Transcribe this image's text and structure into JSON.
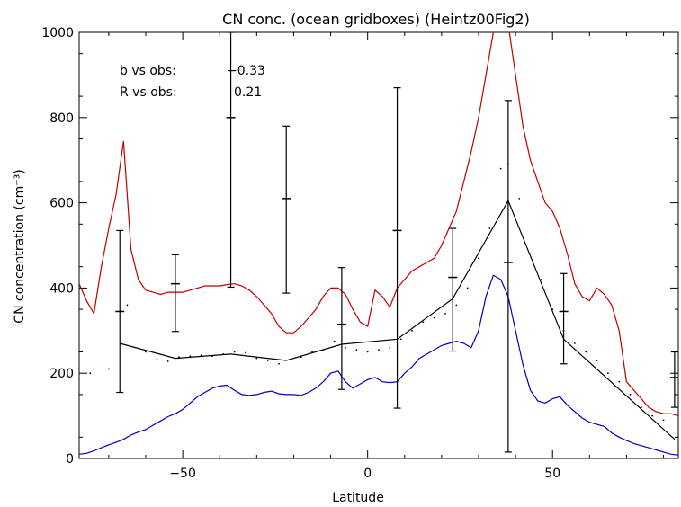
{
  "chart_data": {
    "type": "line",
    "title": "CN conc. (ocean gridboxes) (Heintz00Fig2)",
    "xlabel": "Latitude",
    "ylabel": "CN concentration (cm⁻³)",
    "xlim": [
      -78,
      84
    ],
    "ylim": [
      0,
      1000
    ],
    "x_ticks": [
      -50,
      0,
      50
    ],
    "x_tick_labels": [
      "−50",
      "0",
      "50"
    ],
    "y_ticks": [
      0,
      200,
      400,
      600,
      800,
      1000
    ],
    "y_tick_labels": [
      "0",
      "200",
      "400",
      "600",
      "800",
      "1000"
    ],
    "grid": false,
    "legend": "none",
    "annotations": [
      {
        "label": "b vs obs:",
        "value": "−0.33"
      },
      {
        "label": "R vs obs:",
        "value": "0.21"
      }
    ],
    "series": [
      {
        "color": "#c00000",
        "x": [
          -78,
          -76,
          -74,
          -72,
          -70,
          -68,
          -66,
          -64,
          -62,
          -60,
          -58,
          -56,
          -54,
          -52,
          -50,
          -48,
          -46,
          -44,
          -42,
          -40,
          -38,
          -36,
          -34,
          -32,
          -30,
          -28,
          -26,
          -24,
          -22,
          -20,
          -18,
          -16,
          -14,
          -12,
          -10,
          -8,
          -6,
          -4,
          -2,
          0,
          2,
          4,
          6,
          8,
          10,
          12,
          14,
          16,
          18,
          20,
          22,
          24,
          26,
          28,
          30,
          32,
          34,
          36,
          38,
          40,
          42,
          44,
          46,
          48,
          50,
          52,
          54,
          56,
          58,
          60,
          62,
          64,
          66,
          68,
          70,
          72,
          74,
          76,
          78,
          80,
          82,
          84
        ],
        "y": [
          410,
          370,
          340,
          450,
          540,
          620,
          745,
          490,
          420,
          395,
          390,
          385,
          390,
          390,
          390,
          395,
          400,
          405,
          405,
          405,
          408,
          410,
          405,
          395,
          380,
          360,
          340,
          310,
          295,
          295,
          310,
          330,
          350,
          380,
          400,
          400,
          385,
          350,
          320,
          310,
          395,
          380,
          355,
          400,
          420,
          440,
          450,
          460,
          470,
          500,
          540,
          580,
          650,
          720,
          800,
          900,
          1000,
          1020,
          1020,
          900,
          780,
          700,
          650,
          600,
          580,
          540,
          480,
          410,
          380,
          370,
          400,
          385,
          360,
          300,
          180,
          160,
          140,
          120,
          110,
          105,
          105,
          100
        ]
      },
      {
        "color": "#0000c0",
        "x": [
          -78,
          -76,
          -74,
          -72,
          -70,
          -68,
          -66,
          -64,
          -62,
          -60,
          -58,
          -56,
          -54,
          -52,
          -50,
          -48,
          -46,
          -44,
          -42,
          -40,
          -38,
          -36,
          -34,
          -32,
          -30,
          -28,
          -26,
          -24,
          -22,
          -20,
          -18,
          -16,
          -14,
          -12,
          -10,
          -8,
          -6,
          -4,
          -2,
          0,
          2,
          4,
          6,
          8,
          10,
          12,
          14,
          16,
          18,
          20,
          22,
          24,
          26,
          28,
          30,
          32,
          34,
          36,
          38,
          40,
          42,
          44,
          46,
          48,
          50,
          52,
          54,
          56,
          58,
          60,
          62,
          64,
          66,
          68,
          70,
          72,
          74,
          76,
          78,
          80,
          82,
          84
        ],
        "y": [
          10,
          12,
          18,
          25,
          32,
          38,
          45,
          55,
          62,
          68,
          78,
          88,
          98,
          105,
          115,
          130,
          145,
          155,
          165,
          170,
          172,
          160,
          150,
          148,
          150,
          155,
          158,
          152,
          150,
          150,
          148,
          155,
          165,
          180,
          200,
          205,
          180,
          165,
          175,
          185,
          190,
          180,
          178,
          180,
          200,
          215,
          235,
          245,
          255,
          265,
          270,
          275,
          270,
          260,
          300,
          380,
          430,
          420,
          380,
          300,
          220,
          160,
          135,
          130,
          140,
          145,
          125,
          110,
          95,
          85,
          80,
          75,
          60,
          50,
          42,
          35,
          30,
          25,
          20,
          15,
          10,
          8
        ]
      },
      {
        "color": "#000000",
        "x": [
          -67,
          -52,
          -37,
          -22,
          -7,
          8,
          23,
          38,
          53,
          83
        ],
        "y": [
          270,
          235,
          245,
          230,
          268,
          280,
          375,
          605,
          280,
          45
        ]
      }
    ],
    "observations_errorbars": [
      {
        "x": -67,
        "y": 345,
        "low": 155,
        "high": 535
      },
      {
        "x": -52,
        "y": 410,
        "low": 298,
        "high": 478
      },
      {
        "x": -37,
        "y": 800,
        "low": 402,
        "high": 1000
      },
      {
        "x": -22,
        "y": 610,
        "low": 388,
        "high": 780
      },
      {
        "x": -7,
        "y": 315,
        "low": 162,
        "high": 448
      },
      {
        "x": 8,
        "y": 535,
        "low": 118,
        "high": 870
      },
      {
        "x": 23,
        "y": 425,
        "low": 252,
        "high": 540
      },
      {
        "x": 38,
        "y": 460,
        "low": 15,
        "high": 840
      },
      {
        "x": 53,
        "y": 345,
        "low": 222,
        "high": 434
      },
      {
        "x": 83,
        "y": 190,
        "low": 120,
        "high": 250
      }
    ],
    "dotted_series": {
      "x": [
        -75,
        -70,
        -65,
        -60,
        -57,
        -54,
        -51,
        -48,
        -45,
        -42,
        -39,
        -36,
        -33,
        -30,
        -27,
        -24,
        -21,
        -18,
        -15,
        -12,
        -9,
        -6,
        -3,
        0,
        3,
        6,
        9,
        12,
        15,
        18,
        21,
        24,
        27,
        30,
        33,
        36,
        38,
        41,
        44,
        47,
        50,
        53,
        56,
        59,
        62,
        65,
        68,
        71,
        74,
        77,
        80
      ],
      "y": [
        200,
        210,
        360,
        250,
        232,
        228,
        238,
        240,
        242,
        240,
        245,
        250,
        248,
        235,
        230,
        222,
        232,
        238,
        250,
        255,
        275,
        260,
        255,
        250,
        255,
        260,
        280,
        300,
        320,
        330,
        340,
        360,
        400,
        470,
        540,
        680,
        690,
        610,
        480,
        420,
        350,
        300,
        270,
        250,
        230,
        200,
        180,
        150,
        120,
        100,
        90
      ]
    }
  }
}
